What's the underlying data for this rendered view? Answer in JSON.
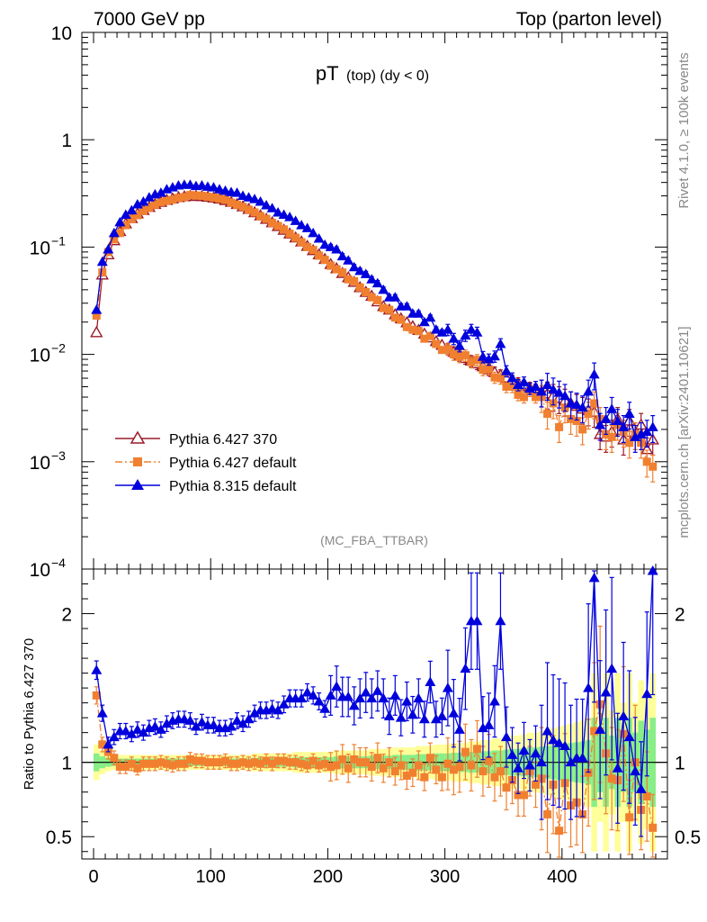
{
  "chart_data": {
    "type": "line",
    "header": {
      "energy": "7000 GeV pp",
      "process": "Top (parton level)"
    },
    "title_main": "pT",
    "title_sub": "(top) (dy < 0)",
    "analysis_tag": "(MC_FBA_TTBAR)",
    "side_label_top": "Rivet 4.1.0, ≥ 100k events",
    "side_label_bottom": "mcplots.cern.ch [arXiv:2401.10621]",
    "x_axis": {
      "range": [
        -10,
        490
      ],
      "ticks": [
        0,
        100,
        200,
        300,
        400
      ],
      "tick_labels": [
        "0",
        "100",
        "200",
        "300",
        "400"
      ]
    },
    "main_y_axis": {
      "scale": "log",
      "range": [
        0.0001,
        10
      ],
      "tick_mantissa": "10",
      "tick_exponents": [
        "−4",
        "−3",
        "−2",
        "−1"
      ],
      "tick_one": "1",
      "tick_ten": "10"
    },
    "ratio_y_axis": {
      "label": "Ratio to Pythia 6.427 370",
      "range": [
        0.35,
        2.3
      ],
      "ticks": [
        0.5,
        1,
        2
      ],
      "tick_labels": [
        "0.5",
        "1",
        "2"
      ]
    },
    "legend": [
      {
        "name": "Pythia 6.427 370",
        "color": "#9b1b2a",
        "marker": "open-triangle",
        "style": "solid"
      },
      {
        "name": "Pythia 6.427 default",
        "color": "#f08030",
        "marker": "square",
        "style": "dashdot"
      },
      {
        "name": "Pythia 8.315 default",
        "color": "#0000dd",
        "marker": "triangle",
        "style": "solid"
      }
    ],
    "x": [
      2.5,
      7.5,
      12.5,
      17.5,
      22.5,
      27.5,
      32.5,
      37.5,
      42.5,
      47.5,
      52.5,
      57.5,
      62.5,
      67.5,
      72.5,
      77.5,
      82.5,
      87.5,
      92.5,
      97.5,
      102.5,
      107.5,
      112.5,
      117.5,
      122.5,
      127.5,
      132.5,
      137.5,
      142.5,
      147.5,
      152.5,
      157.5,
      162.5,
      167.5,
      172.5,
      177.5,
      182.5,
      187.5,
      192.5,
      197.5,
      202.5,
      207.5,
      212.5,
      217.5,
      222.5,
      227.5,
      232.5,
      237.5,
      242.5,
      247.5,
      252.5,
      257.5,
      262.5,
      267.5,
      272.5,
      277.5,
      282.5,
      287.5,
      292.5,
      297.5,
      302.5,
      307.5,
      312.5,
      317.5,
      322.5,
      327.5,
      332.5,
      337.5,
      342.5,
      347.5,
      352.5,
      357.5,
      362.5,
      367.5,
      372.5,
      377.5,
      382.5,
      387.5,
      392.5,
      397.5,
      402.5,
      407.5,
      412.5,
      417.5,
      422.5,
      427.5,
      432.5,
      437.5,
      442.5,
      447.5,
      452.5,
      457.5,
      462.5,
      467.5,
      472.5,
      477.5
    ],
    "series": [
      {
        "name": "Pythia 6.427 370",
        "values": [
          0.016,
          0.055,
          0.085,
          0.115,
          0.14,
          0.165,
          0.185,
          0.205,
          0.22,
          0.235,
          0.25,
          0.262,
          0.273,
          0.282,
          0.29,
          0.295,
          0.298,
          0.298,
          0.296,
          0.293,
          0.288,
          0.281,
          0.272,
          0.262,
          0.25,
          0.238,
          0.225,
          0.21,
          0.196,
          0.182,
          0.169,
          0.156,
          0.144,
          0.133,
          0.122,
          0.112,
          0.102,
          0.093,
          0.085,
          0.077,
          0.069,
          0.063,
          0.057,
          0.052,
          0.047,
          0.042,
          0.038,
          0.035,
          0.031,
          0.028,
          0.026,
          0.0235,
          0.0215,
          0.0198,
          0.0182,
          0.0168,
          0.0155,
          0.0143,
          0.0132,
          0.0122,
          0.0113,
          0.0105,
          0.0098,
          0.0092,
          0.0087,
          0.0082,
          0.0077,
          0.0072,
          0.0068,
          0.0064,
          0.006,
          0.0057,
          0.0054,
          0.0051,
          0.0049,
          0.0047,
          0.0045,
          0.0043,
          0.0041,
          0.0039,
          0.0037,
          0.0035,
          0.0033,
          0.0031,
          0.003,
          0.0029,
          0.0018,
          0.0017,
          0.0019,
          0.0025,
          0.0016,
          0.0024,
          0.0018,
          0.0022,
          0.0013,
          0.0016
        ]
      },
      {
        "name": "Pythia 6.427 default",
        "values": [
          0.023,
          0.058,
          0.09,
          0.118,
          0.135,
          0.16,
          0.183,
          0.198,
          0.218,
          0.232,
          0.248,
          0.262,
          0.27,
          0.276,
          0.287,
          0.292,
          0.305,
          0.302,
          0.3,
          0.294,
          0.289,
          0.282,
          0.275,
          0.259,
          0.248,
          0.237,
          0.223,
          0.21,
          0.194,
          0.183,
          0.168,
          0.157,
          0.146,
          0.133,
          0.122,
          0.111,
          0.1,
          0.094,
          0.083,
          0.076,
          0.067,
          0.062,
          0.058,
          0.05,
          0.048,
          0.042,
          0.038,
          0.034,
          0.032,
          0.027,
          0.026,
          0.022,
          0.021,
          0.018,
          0.017,
          0.0165,
          0.014,
          0.0148,
          0.0125,
          0.011,
          0.0112,
          0.01,
          0.0095,
          0.0098,
          0.0085,
          0.0089,
          0.0072,
          0.0073,
          0.0061,
          0.006,
          0.005,
          0.005,
          0.0042,
          0.004,
          0.0046,
          0.004,
          0.004,
          0.0028,
          0.0035,
          0.0021,
          0.0032,
          0.0025,
          0.0024,
          0.002,
          0.0028,
          0.0035,
          0.0025,
          0.0018,
          0.0017,
          0.0022,
          0.0019,
          0.0015,
          0.0018,
          0.0015,
          0.001,
          0.0009
        ]
      },
      {
        "name": "Pythia 8.315 default",
        "values": [
          0.026,
          0.073,
          0.095,
          0.135,
          0.17,
          0.2,
          0.22,
          0.25,
          0.265,
          0.29,
          0.31,
          0.32,
          0.345,
          0.36,
          0.375,
          0.38,
          0.38,
          0.37,
          0.375,
          0.365,
          0.36,
          0.345,
          0.335,
          0.325,
          0.32,
          0.3,
          0.29,
          0.28,
          0.265,
          0.245,
          0.23,
          0.21,
          0.2,
          0.19,
          0.175,
          0.16,
          0.15,
          0.135,
          0.12,
          0.105,
          0.1,
          0.095,
          0.082,
          0.075,
          0.065,
          0.06,
          0.056,
          0.05,
          0.046,
          0.04,
          0.034,
          0.034,
          0.028,
          0.028,
          0.024,
          0.024,
          0.02,
          0.022,
          0.017,
          0.016,
          0.017,
          0.014,
          0.012,
          0.015,
          0.017,
          0.016,
          0.0095,
          0.009,
          0.0096,
          0.0125,
          0.007,
          0.006,
          0.0052,
          0.0055,
          0.0048,
          0.005,
          0.0045,
          0.0052,
          0.0047,
          0.0044,
          0.0041,
          0.0035,
          0.0034,
          0.0032,
          0.0045,
          0.0065,
          0.0022,
          0.0025,
          0.0031,
          0.0024,
          0.0021,
          0.0028,
          0.0017,
          0.0018,
          0.0019,
          0.0021
        ]
      }
    ],
    "ratios": {
      "Pythia 6.427 default": [
        1.45,
        1.12,
        1.07,
        1.03,
        0.97,
        0.97,
        0.99,
        0.96,
        0.99,
        0.99,
        0.99,
        1.0,
        0.99,
        0.98,
        0.99,
        0.99,
        1.02,
        1.01,
        1.01,
        1.0,
        1.0,
        1.0,
        1.01,
        0.99,
        0.99,
        1.0,
        0.99,
        1.0,
        0.99,
        1.01,
        0.99,
        1.01,
        1.01,
        1.0,
        1.0,
        0.99,
        0.98,
        1.01,
        0.98,
        0.99,
        0.97,
        0.98,
        1.02,
        0.96,
        1.02,
        1.0,
        1.0,
        0.97,
        1.03,
        0.96,
        1.0,
        0.94,
        0.98,
        0.91,
        0.93,
        0.98,
        0.9,
        1.03,
        0.95,
        0.9,
        0.99,
        0.95,
        0.97,
        1.07,
        0.98,
        1.09,
        0.94,
        1.01,
        0.9,
        0.94,
        0.83,
        0.88,
        0.78,
        0.78,
        0.94,
        0.85,
        0.89,
        0.65,
        0.85,
        0.54,
        0.86,
        0.71,
        0.73,
        0.65,
        0.93,
        1.21,
        1.39,
        1.06,
        0.89,
        0.88,
        1.19,
        0.63,
        1.0,
        0.68,
        0.77,
        0.56
      ],
      "Pythia 8.315 default": [
        1.62,
        1.33,
        1.12,
        1.17,
        1.21,
        1.21,
        1.19,
        1.22,
        1.2,
        1.23,
        1.24,
        1.22,
        1.26,
        1.28,
        1.29,
        1.29,
        1.28,
        1.24,
        1.27,
        1.25,
        1.25,
        1.23,
        1.23,
        1.24,
        1.28,
        1.26,
        1.29,
        1.33,
        1.35,
        1.35,
        1.36,
        1.35,
        1.39,
        1.43,
        1.43,
        1.43,
        1.47,
        1.45,
        1.41,
        1.36,
        1.45,
        1.51,
        1.44,
        1.44,
        1.38,
        1.43,
        1.47,
        1.43,
        1.48,
        1.43,
        1.31,
        1.45,
        1.3,
        1.41,
        1.32,
        1.43,
        1.29,
        1.54,
        1.29,
        1.31,
        1.5,
        1.33,
        1.22,
        1.63,
        1.95,
        1.95,
        1.23,
        1.25,
        1.41,
        1.95,
        1.17,
        1.05,
        0.96,
        1.08,
        0.98,
        1.06,
        1.0,
        1.21,
        1.15,
        1.13,
        1.11,
        1.0,
        1.03,
        1.03,
        1.5,
        2.24,
        1.22,
        1.47,
        1.63,
        0.96,
        1.31,
        1.17,
        0.94,
        0.82,
        1.46,
        2.32
      ]
    },
    "band_outer_halfwidth": [
      0.12,
      0.08,
      0.06,
      0.05,
      0.05,
      0.05,
      0.05,
      0.05,
      0.05,
      0.05,
      0.05,
      0.05,
      0.05,
      0.05,
      0.05,
      0.05,
      0.05,
      0.05,
      0.05,
      0.05,
      0.05,
      0.05,
      0.05,
      0.05,
      0.05,
      0.05,
      0.05,
      0.06,
      0.06,
      0.06,
      0.06,
      0.06,
      0.06,
      0.06,
      0.07,
      0.07,
      0.07,
      0.07,
      0.07,
      0.07,
      0.07,
      0.08,
      0.08,
      0.08,
      0.08,
      0.08,
      0.08,
      0.09,
      0.09,
      0.09,
      0.09,
      0.1,
      0.1,
      0.1,
      0.1,
      0.11,
      0.11,
      0.11,
      0.12,
      0.12,
      0.12,
      0.13,
      0.13,
      0.13,
      0.14,
      0.14,
      0.15,
      0.15,
      0.16,
      0.16,
      0.17,
      0.18,
      0.18,
      0.19,
      0.2,
      0.2,
      0.21,
      0.22,
      0.23,
      0.24,
      0.25,
      0.26,
      0.27,
      0.28,
      0.3,
      0.6,
      0.4,
      0.6,
      0.35,
      0.6,
      0.4,
      0.6,
      0.4,
      0.55,
      0.45,
      0.6
    ],
    "band_inner_halfwidth": [
      0.06,
      0.04,
      0.03,
      0.025,
      0.025,
      0.025,
      0.025,
      0.025,
      0.025,
      0.025,
      0.025,
      0.025,
      0.025,
      0.025,
      0.025,
      0.025,
      0.025,
      0.025,
      0.025,
      0.025,
      0.025,
      0.025,
      0.025,
      0.025,
      0.025,
      0.025,
      0.025,
      0.03,
      0.03,
      0.03,
      0.03,
      0.03,
      0.03,
      0.03,
      0.035,
      0.035,
      0.035,
      0.035,
      0.035,
      0.035,
      0.035,
      0.04,
      0.04,
      0.04,
      0.04,
      0.04,
      0.04,
      0.045,
      0.045,
      0.045,
      0.045,
      0.05,
      0.05,
      0.05,
      0.05,
      0.055,
      0.055,
      0.055,
      0.06,
      0.06,
      0.06,
      0.065,
      0.065,
      0.065,
      0.07,
      0.07,
      0.075,
      0.075,
      0.08,
      0.08,
      0.085,
      0.09,
      0.09,
      0.095,
      0.1,
      0.1,
      0.105,
      0.11,
      0.115,
      0.12,
      0.125,
      0.13,
      0.135,
      0.14,
      0.15,
      0.3,
      0.2,
      0.3,
      0.18,
      0.3,
      0.2,
      0.3,
      0.2,
      0.28,
      0.22,
      0.3
    ]
  }
}
